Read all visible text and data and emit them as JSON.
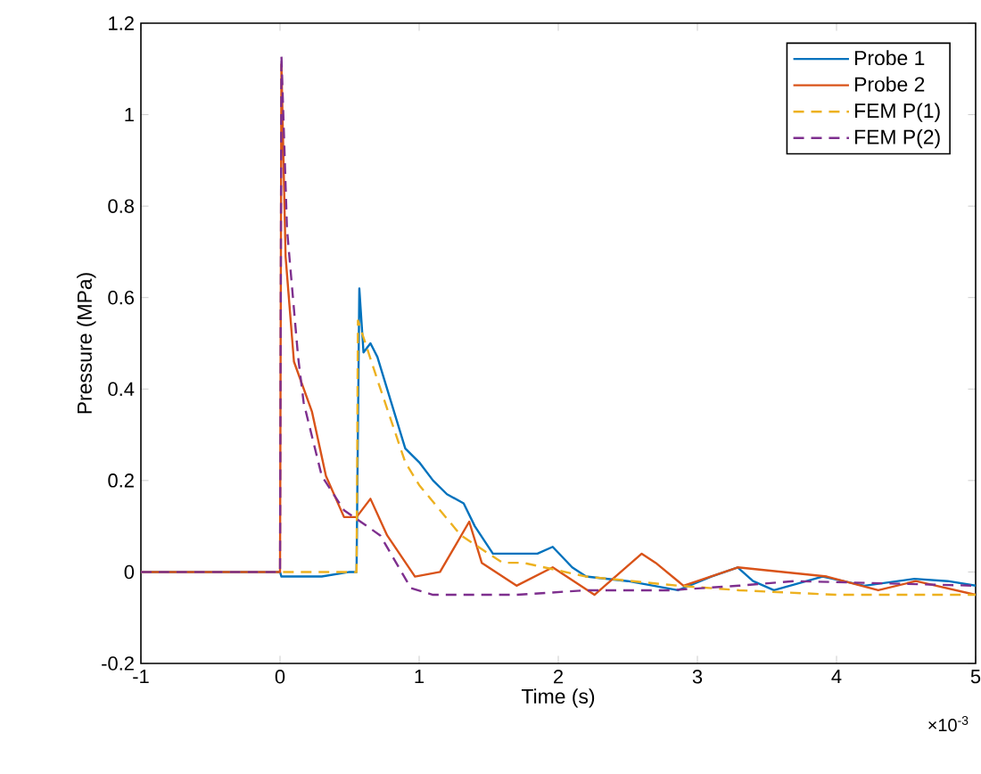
{
  "chart_data": {
    "type": "line",
    "xlabel": "Time (s)",
    "ylabel": "Pressure (MPa)",
    "xlim": [
      -1,
      5
    ],
    "ylim": [
      -0.2,
      1.2
    ],
    "xticks": [
      -1,
      0,
      1,
      2,
      3,
      4,
      5
    ],
    "yticks": [
      -0.2,
      0,
      0.2,
      0.4,
      0.6,
      0.8,
      1,
      1.2
    ],
    "annotations": [
      "×10$^{-3}$"
    ],
    "legend": "top right",
    "grid": false,
    "marker": "none",
    "series": [
      {
        "name": "Probe 1",
        "color": "#0072bd",
        "line_style": "solid",
        "x": [
          -1,
          0,
          0.01,
          0.3,
          0.5,
          0.55,
          0.57,
          0.6,
          0.65,
          0.7,
          0.8,
          0.9,
          1.0,
          1.1,
          1.2,
          1.32,
          1.4,
          1.53,
          1.7,
          1.85,
          1.96,
          2.1,
          2.2,
          2.5,
          2.86,
          3.1,
          3.29,
          3.4,
          3.55,
          3.9,
          4.2,
          4.56,
          4.8,
          5.0
        ],
        "values": [
          0,
          0,
          -0.01,
          -0.01,
          0,
          0,
          0.62,
          0.48,
          0.5,
          0.47,
          0.37,
          0.27,
          0.24,
          0.2,
          0.17,
          0.15,
          0.1,
          0.04,
          0.04,
          0.04,
          0.055,
          0.01,
          -0.01,
          -0.02,
          -0.04,
          -0.01,
          0.01,
          -0.02,
          -0.04,
          -0.01,
          -0.03,
          -0.015,
          -0.02,
          -0.03
        ]
      },
      {
        "name": "Probe 2",
        "color": "#d95319",
        "line_style": "solid",
        "x": [
          -1,
          0,
          0.01,
          0.04,
          0.1,
          0.23,
          0.33,
          0.46,
          0.55,
          0.65,
          0.77,
          0.97,
          1.15,
          1.36,
          1.45,
          1.7,
          1.96,
          2.26,
          2.6,
          2.7,
          2.9,
          3.29,
          3.93,
          4.3,
          4.57,
          5.0
        ],
        "values": [
          0,
          0,
          1.11,
          0.69,
          0.46,
          0.35,
          0.21,
          0.12,
          0.12,
          0.16,
          0.08,
          -0.01,
          0,
          0.11,
          0.02,
          -0.03,
          0.01,
          -0.05,
          0.04,
          0.02,
          -0.03,
          0.01,
          -0.01,
          -0.04,
          -0.02,
          -0.05
        ]
      },
      {
        "name": "FEM P(1)",
        "color": "#edb120",
        "line_style": "dashed",
        "x": [
          -1,
          0,
          0.5,
          0.55,
          0.56,
          0.7,
          0.9,
          1.0,
          1.3,
          1.6,
          1.75,
          2.2,
          2.86,
          3.3,
          4.0,
          5.0
        ],
        "values": [
          0,
          0,
          0,
          0,
          0.55,
          0.42,
          0.24,
          0.19,
          0.08,
          0.02,
          0.02,
          -0.01,
          -0.03,
          -0.04,
          -0.05,
          -0.05
        ]
      },
      {
        "name": "FEM P(2)",
        "color": "#7e2f8e",
        "line_style": "dashed",
        "x": [
          -1,
          0,
          0.01,
          0.05,
          0.13,
          0.17,
          0.3,
          0.46,
          0.72,
          0.94,
          1.1,
          1.7,
          2.2,
          2.8,
          3.3,
          3.7,
          5.0
        ],
        "values": [
          0,
          0,
          1.13,
          0.75,
          0.47,
          0.37,
          0.21,
          0.135,
          0.08,
          -0.035,
          -0.05,
          -0.05,
          -0.04,
          -0.04,
          -0.03,
          -0.02,
          -0.03
        ]
      }
    ]
  }
}
